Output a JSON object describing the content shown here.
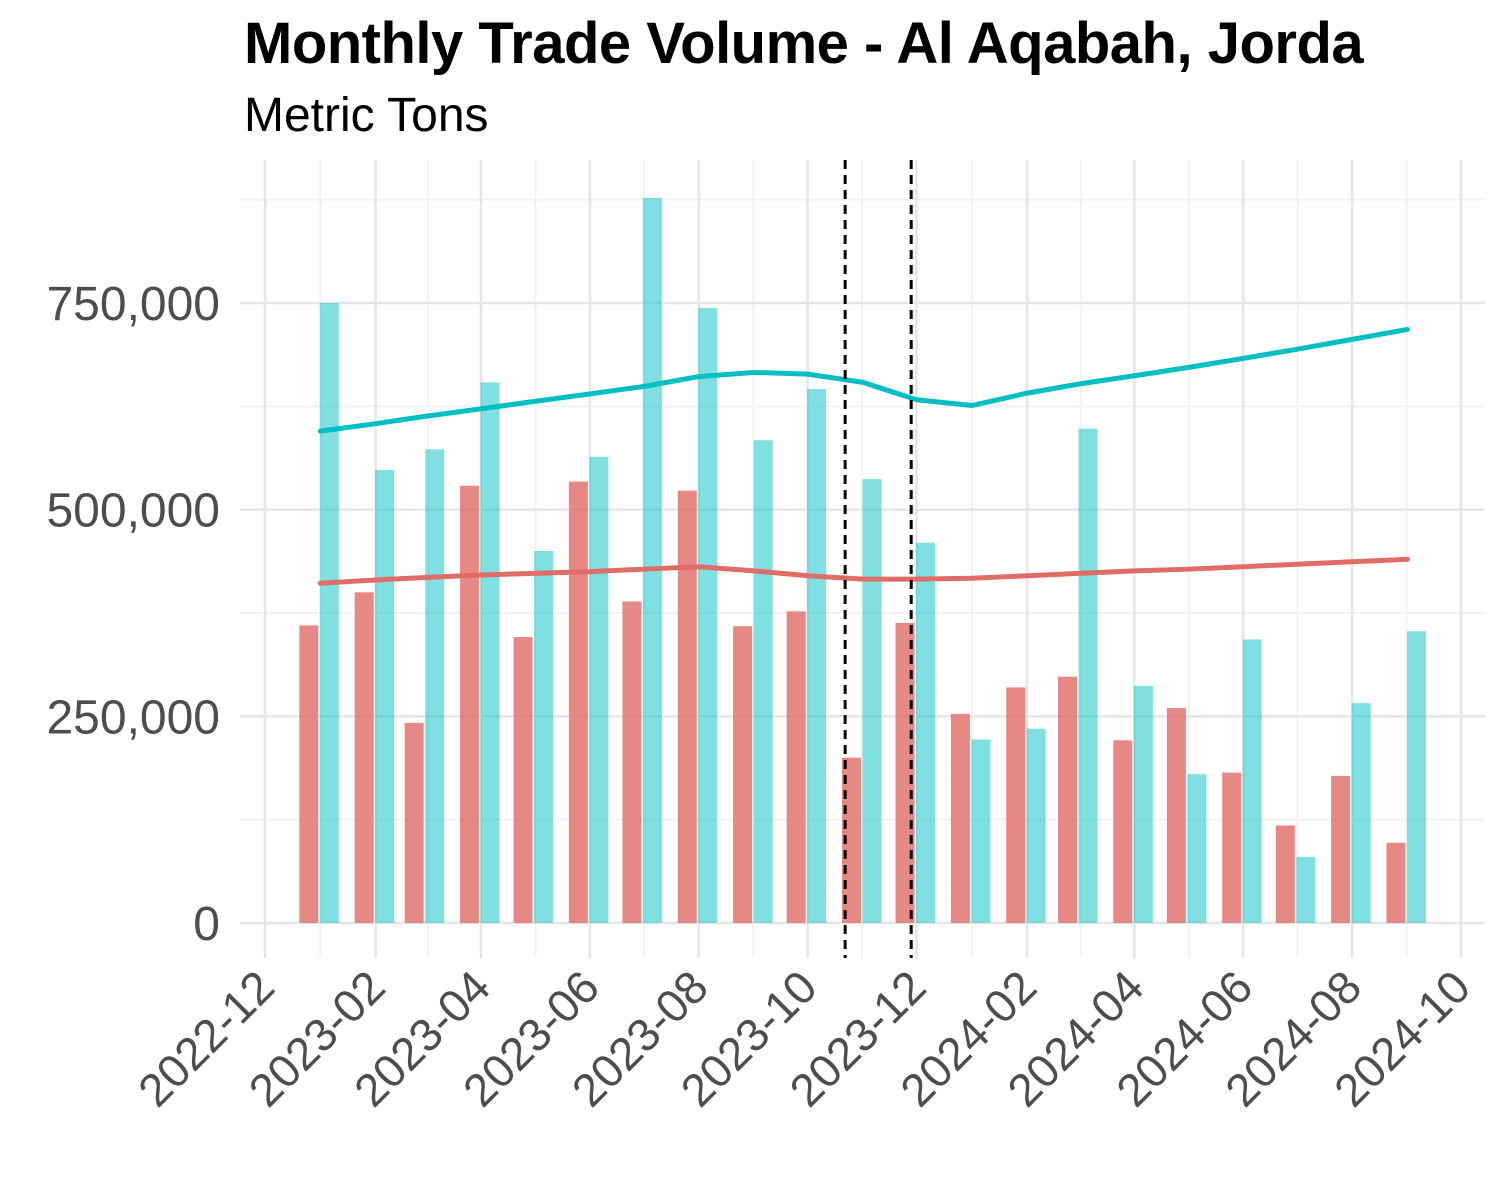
{
  "chart_data": {
    "type": "bar",
    "title": "Monthly Trade Volume - Al Aqabah, Jorda",
    "subtitle": "Metric Tons",
    "xlabel": "",
    "ylabel": "",
    "x_ticks": [
      "2022-12",
      "2023-02",
      "2023-04",
      "2023-06",
      "2023-08",
      "2023-10",
      "2023-12",
      "2024-02",
      "2024-04",
      "2024-06",
      "2024-08",
      "2024-10"
    ],
    "y_ticks": [
      "0",
      "250,000",
      "500,000",
      "750,000"
    ],
    "ylim": [
      -45000,
      925000
    ],
    "grid": true,
    "legend": "none",
    "categories": [
      "2023-01",
      "2023-02",
      "2023-03",
      "2023-04",
      "2023-05",
      "2023-06",
      "2023-07",
      "2023-08",
      "2023-09",
      "2023-10",
      "2023-11",
      "2023-12",
      "2024-01",
      "2024-02",
      "2024-03",
      "2024-04",
      "2024-05",
      "2024-06",
      "2024-07",
      "2024-08",
      "2024-09"
    ],
    "series": [
      {
        "color": "#e06c66",
        "values": [
          360000,
          400000,
          242000,
          529000,
          346000,
          534000,
          389000,
          523000,
          359000,
          377000,
          200000,
          363000,
          253000,
          285000,
          298000,
          221000,
          260000,
          182000,
          118000,
          178000,
          97000
        ],
        "trend": [
          411000,
          415000,
          418000,
          421000,
          423000,
          425000,
          428000,
          431000,
          426000,
          420000,
          416000,
          416000,
          417000,
          420000,
          423000,
          426000,
          428000,
          431000,
          434000,
          437000,
          440000
        ]
      },
      {
        "color": "#00bfc4",
        "values": [
          750000,
          548000,
          573000,
          654000,
          450000,
          564000,
          877000,
          744000,
          584000,
          646000,
          537000,
          460000,
          222000,
          235000,
          598000,
          287000,
          180000,
          343000,
          80000,
          266000,
          353000
        ],
        "trend": [
          595000,
          604000,
          613000,
          622000,
          631000,
          640000,
          649000,
          661000,
          666000,
          664000,
          654000,
          633000,
          626000,
          641000,
          652000,
          662000,
          672000,
          683000,
          694000,
          706000,
          718000
        ]
      }
    ],
    "reference_lines": [
      "2023-10-22",
      "2023-11-28"
    ]
  }
}
